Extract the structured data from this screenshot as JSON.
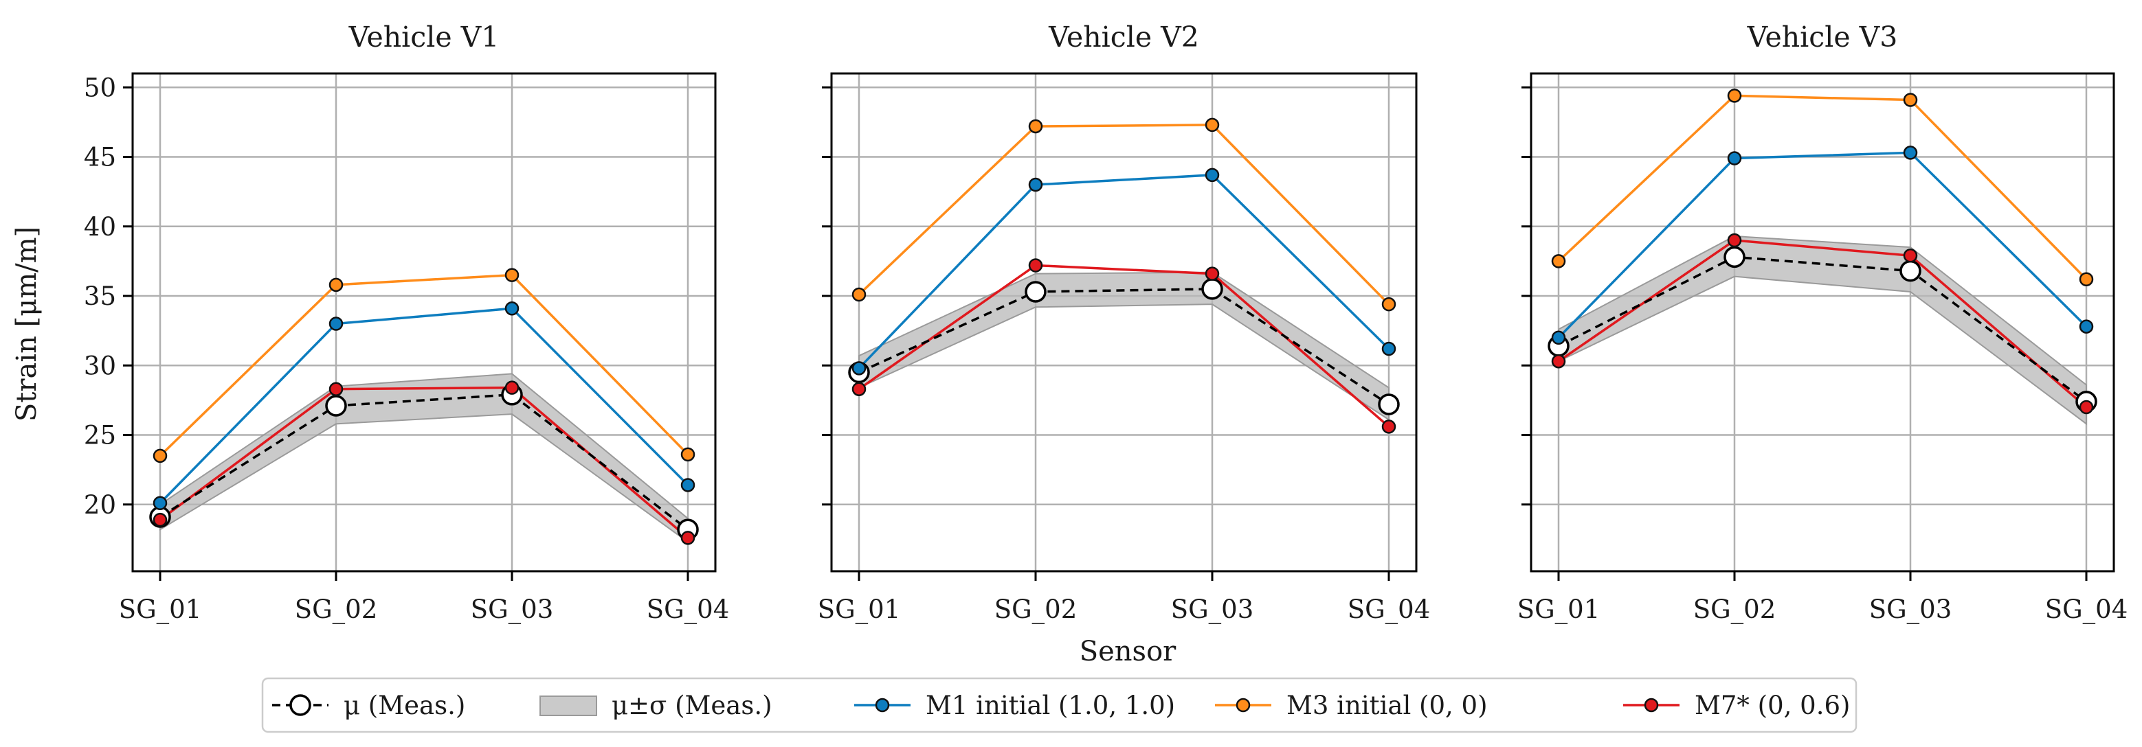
{
  "chart_data": {
    "type": "line",
    "xlabel": "Sensor",
    "ylabel": "Strain [μm/m]",
    "categories": [
      "SG_01",
      "SG_02",
      "SG_03",
      "SG_04"
    ],
    "ylim": [
      15.2,
      51
    ],
    "yticks": [
      20,
      25,
      30,
      35,
      40,
      45,
      50
    ],
    "grid": true,
    "legend_position": "bottom-center",
    "colors": {
      "measured": "#000000",
      "band": "#b8b8b8",
      "m1": "#0d7dbf",
      "m3": "#ff8c1a",
      "m7": "#e0191e",
      "grid": "#b0b0b0"
    },
    "legend": [
      {
        "key": "mu",
        "label": "μ (Meas.)"
      },
      {
        "key": "band",
        "label": "μ±σ (Meas.)"
      },
      {
        "key": "m1",
        "label": "M1 initial (1.0, 1.0)"
      },
      {
        "key": "m3",
        "label": "M3 initial (0, 0)"
      },
      {
        "key": "m7",
        "label": "M7* (0, 0.6)"
      }
    ],
    "panels": [
      {
        "title": "Vehicle V1",
        "series": [
          {
            "key": "mu",
            "name": "μ (Meas.)",
            "values": [
              19.1,
              27.1,
              27.9,
              18.2
            ]
          },
          {
            "key": "band",
            "name": "μ±σ (Meas.)",
            "lower": [
              18.2,
              25.8,
              26.5,
              17.3
            ],
            "upper": [
              20.0,
              28.5,
              29.4,
              19.0
            ]
          },
          {
            "key": "m1",
            "name": "M1 initial (1.0, 1.0)",
            "values": [
              20.1,
              33.0,
              34.1,
              21.4
            ]
          },
          {
            "key": "m3",
            "name": "M3 initial (0, 0)",
            "values": [
              23.5,
              35.8,
              36.5,
              23.6
            ]
          },
          {
            "key": "m7",
            "name": "M7* (0, 0.6)",
            "values": [
              18.9,
              28.3,
              28.4,
              17.6
            ]
          }
        ]
      },
      {
        "title": "Vehicle V2",
        "series": [
          {
            "key": "mu",
            "name": "μ (Meas.)",
            "values": [
              29.5,
              35.3,
              35.5,
              27.2
            ]
          },
          {
            "key": "band",
            "name": "μ±σ (Meas.)",
            "lower": [
              28.4,
              34.2,
              34.4,
              26.1
            ],
            "upper": [
              30.7,
              36.6,
              36.7,
              28.4
            ]
          },
          {
            "key": "m1",
            "name": "M1 initial (1.0, 1.0)",
            "values": [
              29.8,
              43.0,
              43.7,
              31.2
            ]
          },
          {
            "key": "m3",
            "name": "M3 initial (0, 0)",
            "values": [
              35.1,
              47.2,
              47.3,
              34.4
            ]
          },
          {
            "key": "m7",
            "name": "M7* (0, 0.6)",
            "values": [
              28.3,
              37.2,
              36.6,
              25.6
            ]
          }
        ]
      },
      {
        "title": "Vehicle V3",
        "series": [
          {
            "key": "mu",
            "name": "μ (Meas.)",
            "values": [
              31.4,
              37.8,
              36.8,
              27.4
            ]
          },
          {
            "key": "band",
            "name": "μ±σ (Meas.)",
            "lower": [
              30.3,
              36.4,
              35.3,
              25.8
            ],
            "upper": [
              32.6,
              39.3,
              38.5,
              28.6
            ]
          },
          {
            "key": "m1",
            "name": "M1 initial (1.0, 1.0)",
            "values": [
              32.0,
              44.9,
              45.3,
              32.8
            ]
          },
          {
            "key": "m3",
            "name": "M3 initial (0, 0)",
            "values": [
              37.5,
              49.4,
              49.1,
              36.2
            ]
          },
          {
            "key": "m7",
            "name": "M7* (0, 0.6)",
            "values": [
              30.3,
              39.0,
              37.9,
              27.0
            ]
          }
        ]
      }
    ]
  }
}
